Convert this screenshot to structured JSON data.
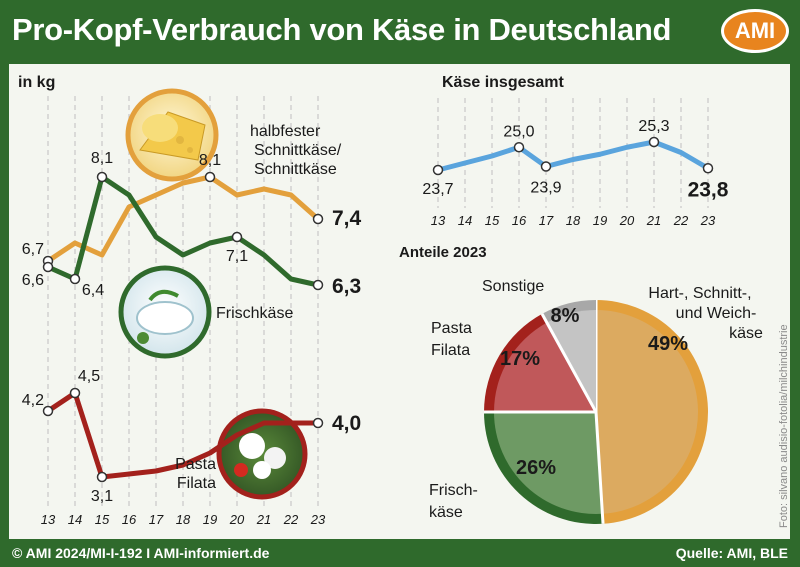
{
  "title": "Pro-Kopf-Verbrauch von Käse in Deutschland",
  "logo": "AMI",
  "footer": {
    "left": "© AMI 2024/MI-I-192 I AMI-informiert.de",
    "right": "Quelle: AMI, BLE"
  },
  "photo_credit": "Foto: silvano audisio-fotolia/milchindustrie",
  "colors": {
    "orange": "#e3a03c",
    "green": "#2f6a2c",
    "red": "#a3211c",
    "blue": "#5aa4dd",
    "gray": "#b4b4b4"
  },
  "chart_data": [
    {
      "type": "line",
      "unit_label": "in kg",
      "x": [
        "13",
        "14",
        "15",
        "16",
        "17",
        "18",
        "19",
        "20",
        "21",
        "22",
        "23"
      ],
      "series": [
        {
          "name": "halbfester Schnittkäse/ Schnittkäse",
          "color": "#e3a03c",
          "values": [
            6.7,
            7.0,
            6.8,
            7.6,
            7.8,
            8.0,
            8.1,
            7.8,
            7.9,
            7.8,
            7.4
          ]
        },
        {
          "name": "Frischkäse",
          "color": "#2f6a2c",
          "values": [
            6.6,
            6.4,
            8.1,
            7.8,
            7.1,
            6.8,
            7.0,
            7.1,
            6.8,
            6.4,
            6.3
          ]
        },
        {
          "name": "Pasta Filata",
          "color": "#a3211c",
          "values": [
            4.2,
            4.5,
            3.1,
            3.15,
            3.2,
            3.3,
            3.5,
            3.8,
            4.0,
            4.0,
            4.0
          ]
        }
      ],
      "labels": [
        {
          "series": 0,
          "index": 0,
          "text": "6,7"
        },
        {
          "series": 0,
          "index": 6,
          "text": "8,1"
        },
        {
          "series": 0,
          "index": 10,
          "text": "7,4"
        },
        {
          "series": 1,
          "index": 0,
          "text": "6,6"
        },
        {
          "series": 1,
          "index": 1,
          "text": "6,4"
        },
        {
          "series": 1,
          "index": 2,
          "text": "8,1"
        },
        {
          "series": 1,
          "index": 7,
          "text": "7,1"
        },
        {
          "series": 1,
          "index": 10,
          "text": "6,3"
        },
        {
          "series": 2,
          "index": 0,
          "text": "4,2"
        },
        {
          "series": 2,
          "index": 1,
          "text": "4,5"
        },
        {
          "series": 2,
          "index": 2,
          "text": "3,1"
        },
        {
          "series": 2,
          "index": 10,
          "text": "4,0"
        }
      ],
      "series_labels": {
        "hs": [
          "halbfester",
          "Schnittkäse/",
          "Schnittkäse"
        ],
        "fk": [
          "Frischkäse"
        ],
        "pf": [
          "Pasta",
          "Filata"
        ]
      }
    },
    {
      "type": "line",
      "title": "Käse insgesamt",
      "x": [
        "13",
        "14",
        "15",
        "16",
        "17",
        "18",
        "19",
        "20",
        "21",
        "22",
        "23"
      ],
      "series": [
        {
          "color": "#5aa4dd",
          "values": [
            23.7,
            24.1,
            24.5,
            25.0,
            23.9,
            24.3,
            24.6,
            25.0,
            25.3,
            24.7,
            23.8
          ]
        }
      ],
      "labels": [
        {
          "index": 0,
          "text": "23,7"
        },
        {
          "index": 3,
          "text": "25,0"
        },
        {
          "index": 4,
          "text": "23,9"
        },
        {
          "index": 8,
          "text": "25,3"
        },
        {
          "index": 10,
          "text": "23,8"
        }
      ]
    },
    {
      "type": "pie",
      "title": "Anteile 2023",
      "slices": [
        {
          "label": "Hart-, Schnitt-, und Weichkäse",
          "label_lines": [
            "Hart-, Schnitt-,",
            "und Weich-",
            "käse"
          ],
          "value": 49,
          "text": "49%",
          "fill": "#dcaa60",
          "ring": "#e3a03c"
        },
        {
          "label": "Frischkäse",
          "label_lines": [
            "Frisch-",
            "käse"
          ],
          "value": 26,
          "text": "26%",
          "fill": "#6e9a64",
          "ring": "#2f6a2c"
        },
        {
          "label": "Pasta Filata",
          "label_lines": [
            "Pasta",
            "Filata"
          ],
          "value": 17,
          "text": "17%",
          "fill": "#c0585a",
          "ring": "#a3211c"
        },
        {
          "label": "Sonstige",
          "label_lines": [
            "Sonstige"
          ],
          "value": 8,
          "text": "8%",
          "fill": "#c4c4c4",
          "ring": "#a8a8a8"
        }
      ]
    }
  ]
}
